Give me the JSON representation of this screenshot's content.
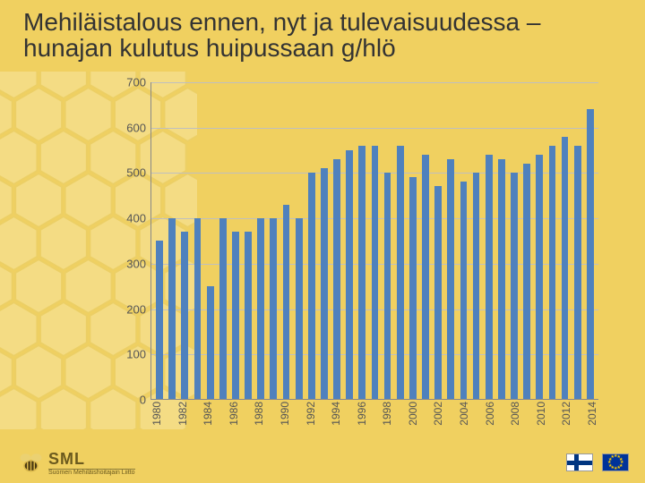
{
  "title": "Mehiläistalous ennen, nyt ja tulevaisuudessa – hunajan kulutus huipussaan g/hlö",
  "background": {
    "page_color": "#f0d060",
    "honeycomb_fill": "#f9e9a8",
    "honeycomb_stroke": "#e9cf6a"
  },
  "chart": {
    "type": "bar",
    "ylim": [
      0,
      700
    ],
    "ytick_step": 100,
    "yticks": [
      0,
      100,
      200,
      300,
      400,
      500,
      600,
      700
    ],
    "x_label_every": 2,
    "bar_color": "#4f81bd",
    "grid_color": "#bfbfbf",
    "axis_color": "#888888",
    "label_color": "#555555",
    "label_fontsize": 13,
    "plot_background": "transparent",
    "years": [
      1980,
      1981,
      1982,
      1983,
      1984,
      1985,
      1986,
      1987,
      1988,
      1989,
      1990,
      1991,
      1992,
      1993,
      1994,
      1995,
      1996,
      1997,
      1998,
      1999,
      2000,
      2001,
      2002,
      2003,
      2004,
      2005,
      2006,
      2007,
      2008,
      2009,
      2010,
      2011,
      2012,
      2013,
      2014
    ],
    "values": [
      350,
      400,
      370,
      400,
      250,
      400,
      370,
      370,
      400,
      400,
      430,
      400,
      500,
      510,
      530,
      550,
      560,
      560,
      500,
      560,
      490,
      540,
      470,
      530,
      480,
      500,
      540,
      530,
      500,
      520,
      540,
      560,
      580,
      560,
      640
    ]
  },
  "footer": {
    "logo_text": "SML",
    "logo_sub": "Suomen Mehiläishoitajain Liitto",
    "flags": [
      "finland",
      "eu"
    ]
  }
}
